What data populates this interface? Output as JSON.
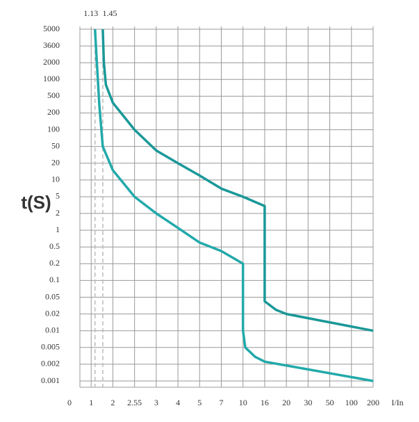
{
  "chart_data": {
    "type": "line",
    "x_label": "I/In",
    "y_label": "t(S)",
    "xticks": [
      0,
      1,
      2,
      2.55,
      3,
      4,
      5,
      7,
      10,
      16,
      20,
      30,
      50,
      100,
      200
    ],
    "yticks": [
      5000,
      3600,
      2000,
      1000,
      500,
      200,
      100,
      50,
      20,
      10,
      5,
      2,
      1,
      0.5,
      0.2,
      0.1,
      0.05,
      0.02,
      0.01,
      0.005,
      0.002,
      0.001
    ],
    "xlim": [
      0,
      200
    ],
    "ylim": [
      0.001,
      5000
    ],
    "grid": true,
    "vlines": [
      1.13,
      1.45
    ],
    "vline_color": "#bbbbbb",
    "series": [
      {
        "color": "#1a9898",
        "x": [
          1.45,
          1.5,
          1.6,
          2,
          2.55,
          3,
          4,
          5,
          7,
          10,
          16,
          16,
          18,
          20,
          200
        ],
        "values": [
          5000,
          2000,
          800,
          350,
          100,
          40,
          20,
          12,
          7,
          5,
          3,
          0.04,
          0.025,
          0.02,
          0.01
        ]
      },
      {
        "color": "#22a9aa",
        "x": [
          1.13,
          1.2,
          1.3,
          1.45,
          2,
          2.55,
          3,
          4,
          5,
          7,
          10,
          10,
          10.5,
          13,
          16,
          200
        ],
        "values": [
          5000,
          2000,
          300,
          50,
          15,
          5,
          2,
          1.1,
          0.6,
          0.4,
          0.2,
          0.01,
          0.005,
          0.003,
          0.0023,
          0.001
        ]
      }
    ]
  }
}
